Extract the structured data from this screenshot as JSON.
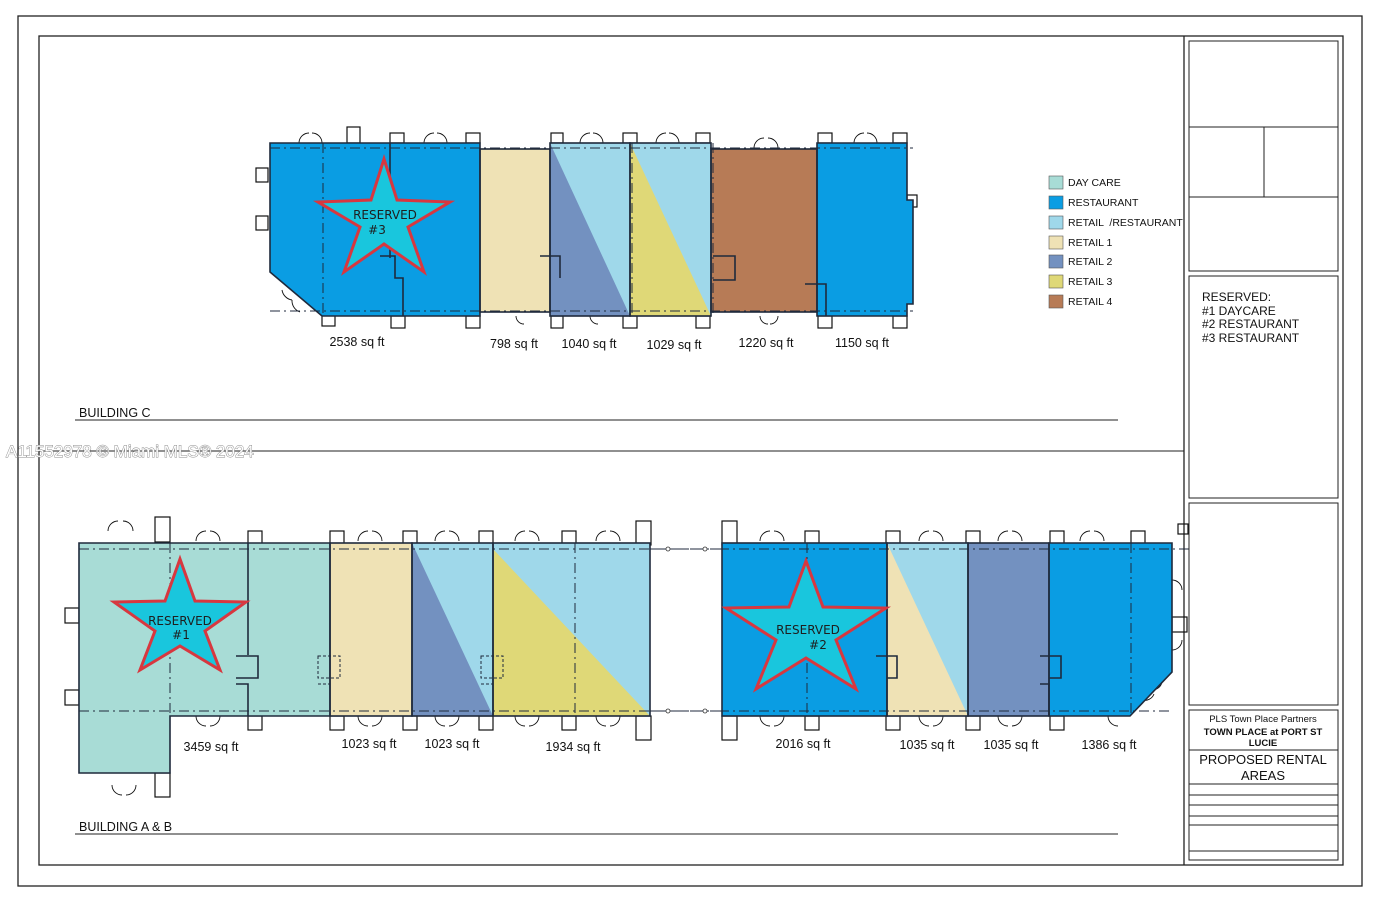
{
  "watermark": "A11552978 © Miami MLS® 2024",
  "colors": {
    "day_care": "#a8dcd6",
    "restaurant": "#0a9de3",
    "retail_restaurant": "#9fd8ea",
    "retail_1": "#efe2b5",
    "retail_2": "#7391c0",
    "retail_3": "#dfd877",
    "retail_4": "#b77b56",
    "star_fill": "#19c6dd",
    "star_stroke": "#d8373f",
    "outline": "#1f2a3c"
  },
  "legend": [
    {
      "label": "DAY CARE",
      "color": "#a8dcd6"
    },
    {
      "label": "RESTAURANT",
      "color": "#0a9de3"
    },
    {
      "label": "RETAIL  /RESTAURANT",
      "color": "#9fd8ea"
    },
    {
      "label": "RETAIL 1",
      "color": "#efe2b5"
    },
    {
      "label": "RETAIL 2",
      "color": "#7391c0"
    },
    {
      "label": "RETAIL 3",
      "color": "#dfd877"
    },
    {
      "label": "RETAIL 4",
      "color": "#b77b56"
    }
  ],
  "reserved_list": [
    "RESERVED:",
    "#1 DAYCARE",
    "#2 RESTAURANT",
    "#3 RESTAURANT"
  ],
  "building_c": {
    "label": "BUILDING C",
    "units": [
      "2538 sq ft",
      "798 sq ft",
      "1040 sq ft",
      "1029 sq ft",
      "1220 sq ft",
      "1150 sq ft"
    ],
    "star": {
      "line1": "RESERVED",
      "line2": "#3"
    }
  },
  "building_ab": {
    "label": "BUILDING A & B",
    "units": [
      "3459 sq ft",
      "1023 sq ft",
      "1023 sq ft",
      "1934 sq ft",
      "2016 sq ft",
      "1035 sq ft",
      "1035 sq ft",
      "1386 sq ft"
    ],
    "star1": {
      "line1": "RESERVED",
      "line2": "#1"
    },
    "star2": {
      "line1": "RESERVED",
      "line2": "#2"
    }
  },
  "title_block": {
    "company": "PLS Town Place Partners",
    "project_line1": "TOWN PLACE at PORT ST",
    "project_line2": "LUCIE",
    "sheet_line1": "PROPOSED RENTAL",
    "sheet_line2": "AREAS"
  }
}
